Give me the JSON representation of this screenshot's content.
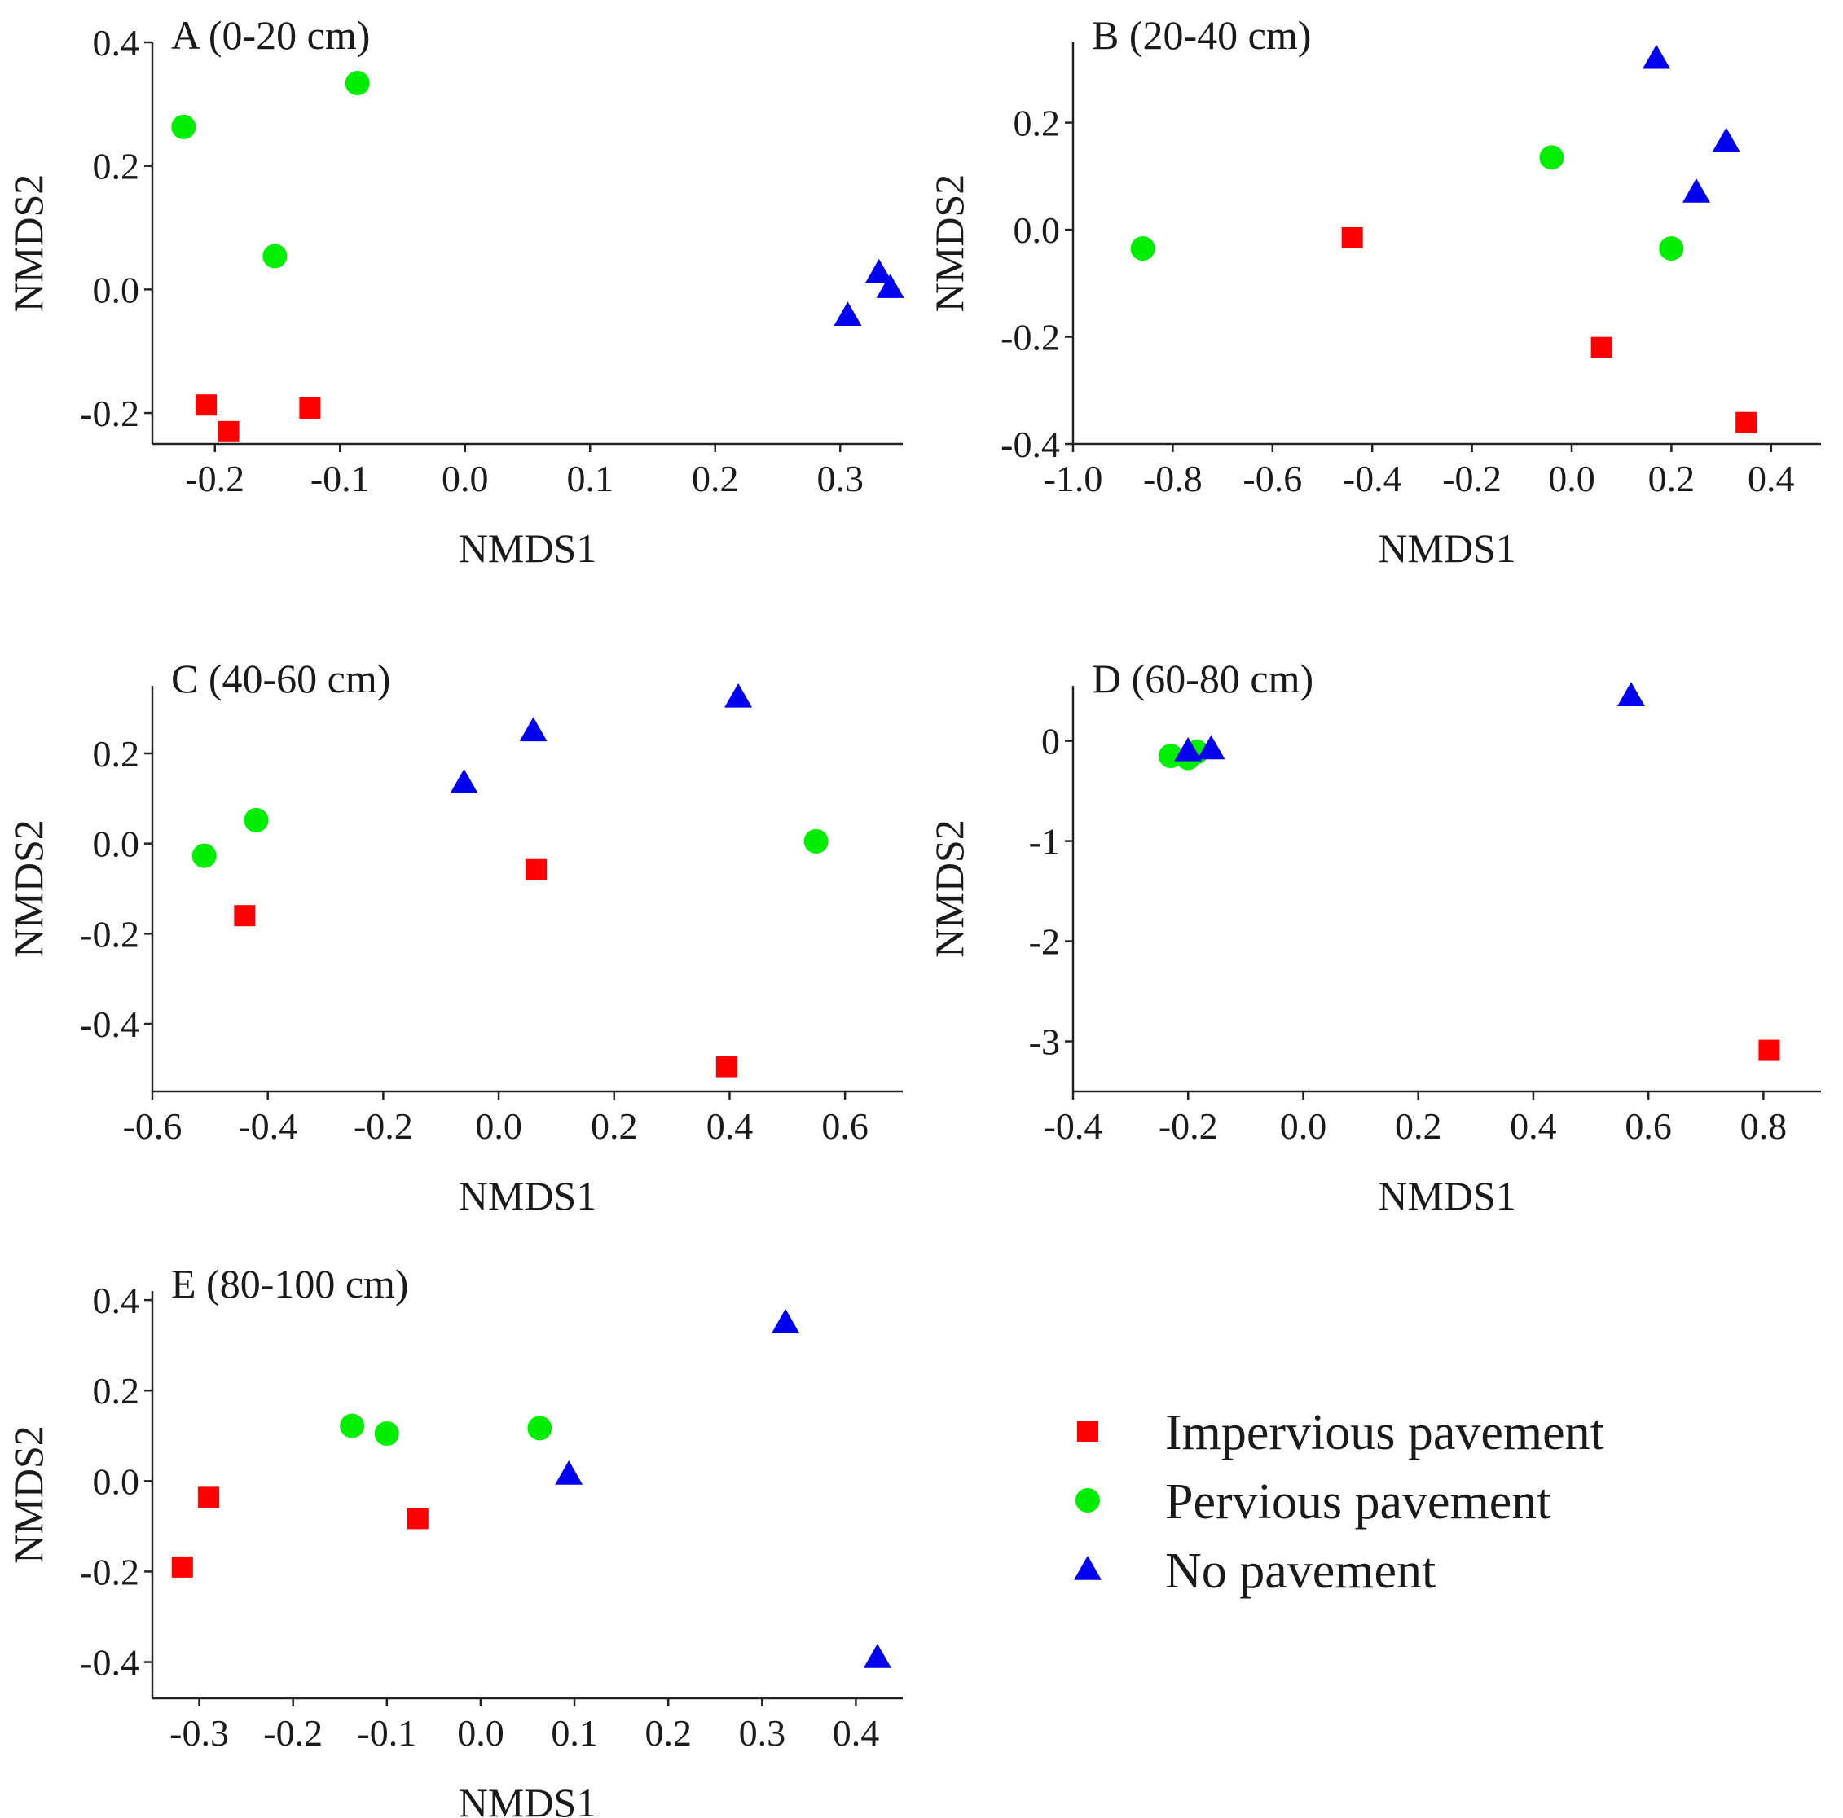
{
  "colors": {
    "impervious": "#ff0000",
    "pervious": "#00ee00",
    "none": "#0000ee",
    "axis": "#222222"
  },
  "legend": {
    "items": [
      {
        "key": "impervious",
        "label": "Impervious pavement",
        "shape": "square"
      },
      {
        "key": "pervious",
        "label": "Pervious pavement",
        "shape": "circle"
      },
      {
        "key": "none",
        "label": "No pavement",
        "shape": "triangle"
      }
    ]
  },
  "chart_data": [
    {
      "type": "scatter",
      "title": "A (0-20 cm)",
      "xlabel": "NMDS1",
      "ylabel": "NMDS2",
      "xlim": [
        -0.25,
        0.35
      ],
      "ylim": [
        -0.25,
        0.4
      ],
      "xticks": [
        -0.2,
        -0.1,
        0.0,
        0.1,
        0.2,
        0.3
      ],
      "xtick_labels": [
        "-0.2",
        "-0.1",
        "0.0",
        "0.1",
        "0.2",
        "0.3"
      ],
      "yticks": [
        -0.2,
        0.0,
        0.2,
        0.4
      ],
      "ytick_labels": [
        "-0.2",
        "0.0",
        "0.2",
        "0.4"
      ],
      "series": [
        {
          "name": "Impervious pavement",
          "key": "impervious",
          "points": [
            [
              -0.207,
              -0.187
            ],
            [
              -0.189,
              -0.23
            ],
            [
              -0.124,
              -0.192
            ]
          ]
        },
        {
          "name": "Pervious pavement",
          "key": "pervious",
          "points": [
            [
              -0.225,
              0.263
            ],
            [
              -0.086,
              0.334
            ],
            [
              -0.152,
              0.054
            ]
          ]
        },
        {
          "name": "No pavement",
          "key": "none",
          "points": [
            [
              0.306,
              -0.042
            ],
            [
              0.331,
              0.027
            ],
            [
              0.34,
              0.003
            ]
          ]
        }
      ]
    },
    {
      "type": "scatter",
      "title": "B (20-40 cm)",
      "xlabel": "NMDS1",
      "ylabel": "NMDS2",
      "xlim": [
        -1.0,
        0.5
      ],
      "ylim": [
        -0.4,
        0.35
      ],
      "xticks": [
        -1.0,
        -0.8,
        -0.6,
        -0.4,
        -0.2,
        0.0,
        0.2,
        0.4
      ],
      "xtick_labels": [
        "-1.0",
        "-0.8",
        "-0.6",
        "-0.4",
        "-0.2",
        "0.0",
        "0.2",
        "0.4"
      ],
      "yticks": [
        -0.4,
        -0.2,
        0.0,
        0.2
      ],
      "ytick_labels": [
        "-0.4",
        "-0.2",
        "0.0",
        "0.2"
      ],
      "series": [
        {
          "name": "Impervious pavement",
          "key": "impervious",
          "points": [
            [
              -0.44,
              -0.015
            ],
            [
              0.06,
              -0.22
            ],
            [
              0.35,
              -0.36
            ]
          ]
        },
        {
          "name": "Pervious pavement",
          "key": "pervious",
          "points": [
            [
              -0.86,
              -0.035
            ],
            [
              -0.04,
              0.135
            ],
            [
              0.2,
              -0.035
            ]
          ]
        },
        {
          "name": "No pavement",
          "key": "none",
          "points": [
            [
              0.17,
              0.32
            ],
            [
              0.31,
              0.165
            ],
            [
              0.25,
              0.07
            ]
          ]
        }
      ]
    },
    {
      "type": "scatter",
      "title": "C (40-60 cm)",
      "xlabel": "NMDS1",
      "ylabel": "NMDS2",
      "xlim": [
        -0.6,
        0.7
      ],
      "ylim": [
        -0.55,
        0.35
      ],
      "xticks": [
        -0.6,
        -0.4,
        -0.2,
        0.0,
        0.2,
        0.4,
        0.6
      ],
      "xtick_labels": [
        "-0.6",
        "-0.4",
        "-0.2",
        "0.0",
        "0.2",
        "0.4",
        "0.6"
      ],
      "yticks": [
        -0.4,
        -0.2,
        0.0,
        0.2
      ],
      "ytick_labels": [
        "-0.4",
        "-0.2",
        "0.0",
        "0.2"
      ],
      "series": [
        {
          "name": "Impervious pavement",
          "key": "impervious",
          "points": [
            [
              -0.44,
              -0.16
            ],
            [
              0.065,
              -0.058
            ],
            [
              0.395,
              -0.495
            ]
          ]
        },
        {
          "name": "Pervious pavement",
          "key": "pervious",
          "points": [
            [
              -0.51,
              -0.027
            ],
            [
              -0.42,
              0.052
            ],
            [
              0.55,
              0.005
            ]
          ]
        },
        {
          "name": "No pavement",
          "key": "none",
          "points": [
            [
              -0.06,
              0.135
            ],
            [
              0.06,
              0.25
            ],
            [
              0.415,
              0.325
            ]
          ]
        }
      ]
    },
    {
      "type": "scatter",
      "title": "D (60-80 cm)",
      "xlabel": "NMDS1",
      "ylabel": "NMDS2",
      "xlim": [
        -0.4,
        0.9
      ],
      "ylim": [
        -3.5,
        0.55
      ],
      "xticks": [
        -0.4,
        -0.2,
        0.0,
        0.2,
        0.4,
        0.6,
        0.8
      ],
      "xtick_labels": [
        "-0.4",
        "-0.2",
        "0.0",
        "0.2",
        "0.4",
        "0.6",
        "0.8"
      ],
      "yticks": [
        -3,
        -2,
        -1,
        0
      ],
      "ytick_labels": [
        "-3",
        "-2",
        "-1",
        "0"
      ],
      "series": [
        {
          "name": "Impervious pavement",
          "key": "impervious",
          "points": [
            [
              0.81,
              -3.09
            ]
          ]
        },
        {
          "name": "Pervious pavement",
          "key": "pervious",
          "points": [
            [
              -0.23,
              -0.15
            ],
            [
              -0.2,
              -0.17
            ],
            [
              -0.185,
              -0.11
            ]
          ]
        },
        {
          "name": "No pavement",
          "key": "none",
          "points": [
            [
              -0.2,
              -0.1
            ],
            [
              -0.16,
              -0.08
            ],
            [
              0.57,
              0.45
            ]
          ]
        }
      ]
    },
    {
      "type": "scatter",
      "title": "E (80-100 cm)",
      "xlabel": "NMDS1",
      "ylabel": "NMDS2",
      "xlim": [
        -0.35,
        0.45
      ],
      "ylim": [
        -0.48,
        0.42
      ],
      "xticks": [
        -0.3,
        -0.2,
        -0.1,
        0.0,
        0.1,
        0.2,
        0.3,
        0.4
      ],
      "xtick_labels": [
        "-0.3",
        "-0.2",
        "-0.1",
        "0.0",
        "0.1",
        "0.2",
        "0.3",
        "0.4"
      ],
      "yticks": [
        -0.4,
        -0.2,
        0.0,
        0.2,
        0.4
      ],
      "ytick_labels": [
        "-0.4",
        "-0.2",
        "0.0",
        "0.2",
        "0.4"
      ],
      "series": [
        {
          "name": "Impervious pavement",
          "key": "impervious",
          "points": [
            [
              -0.318,
              -0.19
            ],
            [
              -0.29,
              -0.036
            ],
            [
              -0.067,
              -0.083
            ]
          ]
        },
        {
          "name": "Pervious pavement",
          "key": "pervious",
          "points": [
            [
              -0.137,
              0.122
            ],
            [
              -0.1,
              0.105
            ],
            [
              0.063,
              0.117
            ]
          ]
        },
        {
          "name": "No pavement",
          "key": "none",
          "points": [
            [
              0.094,
              0.015
            ],
            [
              0.325,
              0.35
            ],
            [
              0.423,
              -0.39
            ]
          ]
        }
      ]
    }
  ]
}
